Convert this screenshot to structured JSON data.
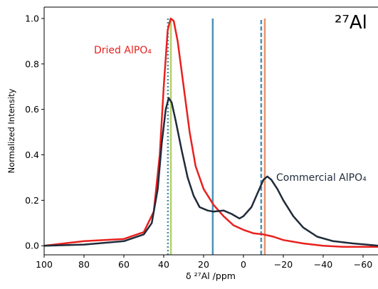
{
  "chart_data": {
    "type": "line",
    "title": "²⁷Al",
    "xlabel": "δ ²⁷Al /ppm",
    "ylabel": "Normalized Intensity",
    "xlim": [
      100,
      -68
    ],
    "ylim": [
      -0.04,
      1.05
    ],
    "xticks": [
      100,
      80,
      60,
      40,
      20,
      0,
      {
        "value": -20,
        "label": "−20"
      },
      {
        "value": -40,
        "label": "−40"
      },
      {
        "value": -60,
        "label": "−60"
      }
    ],
    "yticks": [
      {
        "value": 0,
        "label": "0.0"
      },
      0.2,
      0.4,
      0.6,
      0.8,
      {
        "value": 1,
        "label": "1.0"
      }
    ],
    "series": [
      {
        "name": "Dried AlPO₄",
        "color": "#e8201e",
        "x": [
          100,
          80,
          60,
          50,
          45,
          42,
          40,
          38,
          36.5,
          35,
          33,
          30,
          27,
          24,
          20,
          15,
          10,
          5,
          0,
          -5,
          -10,
          -15,
          -20,
          -30,
          -40,
          -50,
          -68
        ],
        "values": [
          0.0,
          0.02,
          0.03,
          0.06,
          0.15,
          0.4,
          0.7,
          0.95,
          1.0,
          0.99,
          0.9,
          0.7,
          0.5,
          0.35,
          0.25,
          0.18,
          0.13,
          0.09,
          0.07,
          0.055,
          0.05,
          0.04,
          0.025,
          0.01,
          0.0,
          -0.005,
          -0.005
        ]
      },
      {
        "name": "Commercial AlPO₄",
        "color": "#1f2b3a",
        "x": [
          100,
          80,
          60,
          50,
          46,
          43,
          41,
          39,
          37.5,
          36,
          34,
          31,
          28,
          25,
          22,
          18,
          15,
          10,
          6,
          2,
          0,
          -4,
          -7,
          -10,
          -12,
          -14,
          -17,
          -20,
          -25,
          -30,
          -37,
          -45,
          -55,
          -68
        ],
        "values": [
          0.0,
          0.005,
          0.02,
          0.05,
          0.1,
          0.25,
          0.45,
          0.6,
          0.65,
          0.63,
          0.55,
          0.42,
          0.3,
          0.22,
          0.17,
          0.155,
          0.15,
          0.155,
          0.14,
          0.12,
          0.13,
          0.17,
          0.23,
          0.29,
          0.305,
          0.29,
          0.25,
          0.2,
          0.13,
          0.08,
          0.04,
          0.02,
          0.01,
          0.0
        ]
      }
    ],
    "vlines": [
      {
        "x": 37.9,
        "ymax": 1.0,
        "color": "#3f8fa5",
        "style": "dotted"
      },
      {
        "x": 36.4,
        "ymax": 1.0,
        "color": "#b7cf68",
        "style": "solid"
      },
      {
        "x": 15.4,
        "ymax": 1.0,
        "color": "#4a92b8",
        "style": "solid"
      },
      {
        "x": -8.9,
        "ymax": 1.0,
        "color": "#4a92b8",
        "style": "dashed"
      },
      {
        "x": -10.7,
        "ymax": 1.0,
        "color": "#e8956a",
        "style": "solid"
      }
    ]
  }
}
